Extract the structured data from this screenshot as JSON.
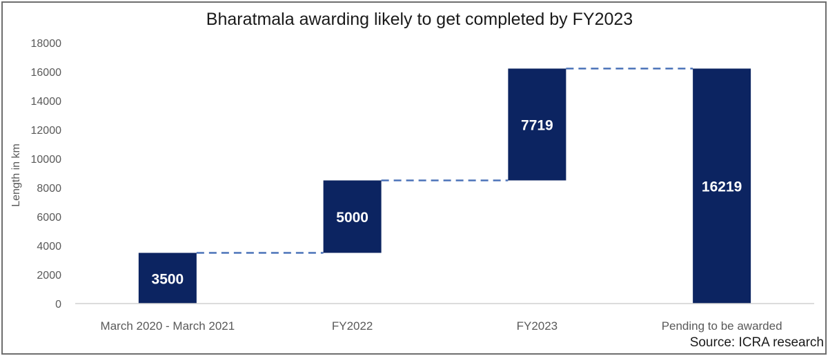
{
  "chart_data": {
    "type": "bar",
    "variant": "waterfall",
    "title": "Bharatmala awarding likely to get completed by FY2023",
    "xlabel": "",
    "ylabel": "Length in km",
    "categories": [
      "March 2020 - March 2021",
      "FY2022",
      "FY2023",
      "Pending to be awarded"
    ],
    "values": [
      3500,
      5000,
      7719,
      16219
    ],
    "total_index": 3,
    "ylim": [
      0,
      18000
    ],
    "yticks": [
      0,
      2000,
      4000,
      6000,
      8000,
      10000,
      12000,
      14000,
      16000,
      18000
    ],
    "grid": false,
    "legend": "none",
    "connector_lines": "dashed",
    "colors": {
      "bar": "#0c2461",
      "connector": "#4a72b8",
      "label": "#ffffff"
    },
    "source": "Source: ICRA research"
  }
}
